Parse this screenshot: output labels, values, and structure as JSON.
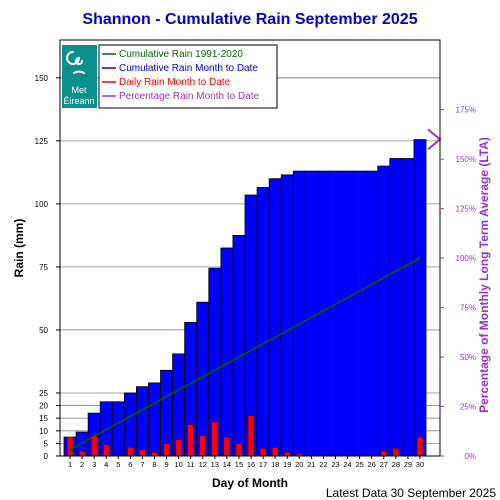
{
  "chart_data": {
    "type": "bar",
    "title": "Shannon - Cumulative Rain September   2025",
    "xlabel": "Day of Month",
    "ylabel": "Rain (mm)",
    "y2label": "Percentage  of Monthly Long Term Average (LTA)",
    "footer": "Latest Data 30 September 2025",
    "ylim": [
      0,
      165
    ],
    "y_ticks": [
      0,
      5,
      10,
      15,
      20,
      25,
      50,
      75,
      100,
      125,
      150
    ],
    "y2_ticks": [
      "0%",
      "25%",
      "50%",
      "75%",
      "100%",
      "125%",
      "150%",
      "175%"
    ],
    "y2_tick_values": [
      0,
      25,
      50,
      75,
      100,
      125,
      150,
      175
    ],
    "lta_total_mm": 78.5,
    "categories": [
      1,
      2,
      3,
      4,
      5,
      6,
      7,
      8,
      9,
      10,
      11,
      12,
      13,
      14,
      15,
      16,
      17,
      18,
      19,
      20,
      21,
      22,
      23,
      24,
      25,
      26,
      27,
      28,
      29,
      30
    ],
    "legend": {
      "items": [
        {
          "label": "Cumulative Rain 1991-2020",
          "color": "#006600"
        },
        {
          "label": "Cumulative Rain Month to Date",
          "color": "#0000ff"
        },
        {
          "label": "Daily Rain Month to Date",
          "color": "#ff0000"
        },
        {
          "label": "Percentage Rain Month to Date",
          "color": "#9933cc"
        }
      ]
    },
    "logo": {
      "line1": "Met",
      "line2": "Éireann"
    },
    "series": [
      {
        "name": "Cumulative Rain Month to Date",
        "color": "#0000ff",
        "values": [
          7.5,
          9.5,
          17,
          21.5,
          21.5,
          25,
          27.5,
          29,
          34,
          40.5,
          53,
          61,
          74.5,
          82.5,
          87.5,
          103.5,
          106.5,
          110,
          111.5,
          113,
          113,
          113,
          113,
          113,
          113,
          113,
          115,
          118,
          118,
          125.5
        ]
      },
      {
        "name": "Daily Rain Month to Date",
        "color": "#ff0000",
        "values": [
          7.5,
          2,
          8,
          4.5,
          0.5,
          3.5,
          2.5,
          1.5,
          5,
          6.5,
          12.5,
          8,
          13.5,
          7.5,
          5,
          16,
          3,
          3.5,
          1.5,
          1,
          0,
          0,
          0,
          0,
          0,
          0,
          2,
          3,
          0,
          7.5
        ]
      },
      {
        "name": "Cumulative Rain 1991-2020",
        "color": "#006600",
        "values": [
          2.6,
          5.2,
          7.9,
          10.5,
          13.1,
          15.7,
          18.3,
          20.9,
          23.6,
          26.2,
          28.8,
          31.4,
          34.0,
          36.6,
          39.3,
          41.9,
          44.5,
          47.1,
          49.7,
          52.3,
          55.0,
          57.6,
          60.2,
          62.8,
          65.4,
          68.0,
          70.7,
          73.3,
          75.9,
          78.5
        ]
      }
    ],
    "percent_marker": {
      "value_percent": 160
    }
  }
}
